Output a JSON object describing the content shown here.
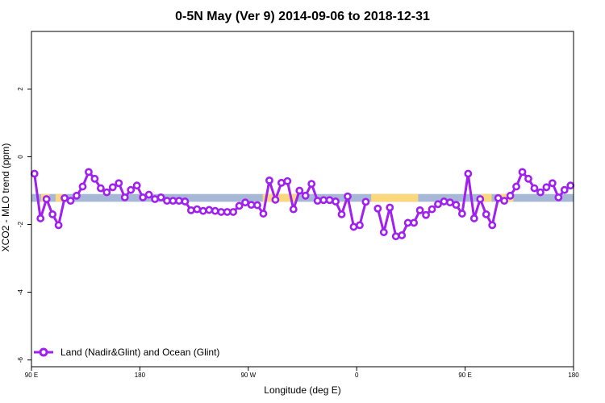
{
  "chart_data": {
    "type": "line",
    "title": "0-5N May (Ver 9)   2014-09-06 to 2018-12-31",
    "xlabel": "Longitude (deg E)",
    "ylabel": "XCO2 - MLO trend (ppm)",
    "xlim": [
      90,
      540
    ],
    "ylim": [
      -6.2,
      3.7
    ],
    "x_ticks": [
      {
        "value": 90,
        "label": "90 E"
      },
      {
        "value": 180,
        "label": "180"
      },
      {
        "value": 270,
        "label": "90 W"
      },
      {
        "value": 360,
        "label": "0"
      },
      {
        "value": 450,
        "label": "90 E"
      },
      {
        "value": 540,
        "label": "180"
      }
    ],
    "y_ticks": [
      {
        "value": 2,
        "label": "2"
      },
      {
        "value": 0,
        "label": "0"
      },
      {
        "value": -2,
        "label": "-2"
      },
      {
        "value": -4,
        "label": "-4"
      },
      {
        "value": -6,
        "label": "-6"
      }
    ],
    "band": {
      "ymin": -1.33,
      "ymax": -1.1,
      "color": "#a6b8d6"
    },
    "land_regions": {
      "color": "#fcd87c",
      "spans": [
        [
          98,
          105
        ],
        [
          110,
          119
        ],
        [
          282,
          310
        ],
        [
          372,
          390
        ],
        [
          390,
          411
        ],
        [
          463,
          472
        ],
        [
          477,
          490
        ]
      ]
    },
    "series": [
      {
        "name": "Land (Nadir&Glint) and Ocean (Glint)",
        "color": "#a020f0",
        "x": [
          92.5,
          97.5,
          102.5,
          107.5,
          112.5,
          117.5,
          122.5,
          127.5,
          132.5,
          137.5,
          142.5,
          147.5,
          152.5,
          157.5,
          162.5,
          167.5,
          172.5,
          177.5,
          182.5,
          187.5,
          192.5,
          197.5,
          202.5,
          207.5,
          212.5,
          217.5,
          222.5,
          227.5,
          232.5,
          237.5,
          242.5,
          247.5,
          252.5,
          257.5,
          262.5,
          267.5,
          272.5,
          277.5,
          282.5,
          287.5,
          292.5,
          297.5,
          302.5,
          307.5,
          312.5,
          317.5,
          322.5,
          327.5,
          332.5,
          337.5,
          342.5,
          347.5,
          352.5,
          357.5,
          362.5,
          367.5,
          372.5,
          377.5,
          382.5,
          387.5,
          392.5,
          397.5,
          402.5,
          407.5,
          412.5,
          417.5,
          422.5,
          427.5,
          432.5,
          437.5,
          442.5,
          447.5,
          452.5,
          457.5,
          462.5,
          467.5,
          472.5,
          477.5,
          482.5,
          487.5,
          492.5,
          497.5,
          502.5,
          507.5,
          512.5,
          517.5,
          522.5,
          527.5,
          532.5,
          537.5,
          540
        ],
        "values": [
          -0.5,
          -1.82,
          -1.25,
          -1.7,
          -2.02,
          -1.22,
          -1.3,
          -1.15,
          -0.88,
          -0.45,
          -0.65,
          -0.93,
          -1.05,
          -0.9,
          -0.78,
          -1.2,
          -0.98,
          -0.85,
          -1.2,
          -1.12,
          -1.25,
          -1.2,
          -1.3,
          -1.3,
          -1.3,
          -1.32,
          -1.58,
          -1.55,
          -1.6,
          -1.57,
          -1.6,
          -1.63,
          -1.63,
          -1.63,
          -1.45,
          -1.35,
          -1.42,
          -1.43,
          -1.68,
          -0.7,
          -1.27,
          -0.77,
          -0.72,
          -1.55,
          -1.0,
          -1.15,
          -0.8,
          -1.3,
          -1.28,
          -1.28,
          -1.32,
          -1.7,
          -1.17,
          -2.07,
          -2.02,
          -1.33,
          null,
          -1.53,
          -2.23,
          -1.5,
          -2.35,
          -2.32,
          -1.95,
          -1.95,
          -1.58,
          -1.72,
          -1.55,
          -1.4,
          -1.32,
          -1.35,
          -1.42,
          -1.68,
          -0.5,
          -1.82,
          -1.25,
          -1.7,
          -2.02,
          -1.22,
          -1.3,
          -1.15,
          -0.88,
          -0.45,
          -0.65,
          -0.93,
          -1.05,
          -0.9,
          -0.78,
          -1.2,
          -0.98,
          -0.85,
          -0.85
        ]
      }
    ],
    "legend": "bottom-left",
    "grid": false
  }
}
